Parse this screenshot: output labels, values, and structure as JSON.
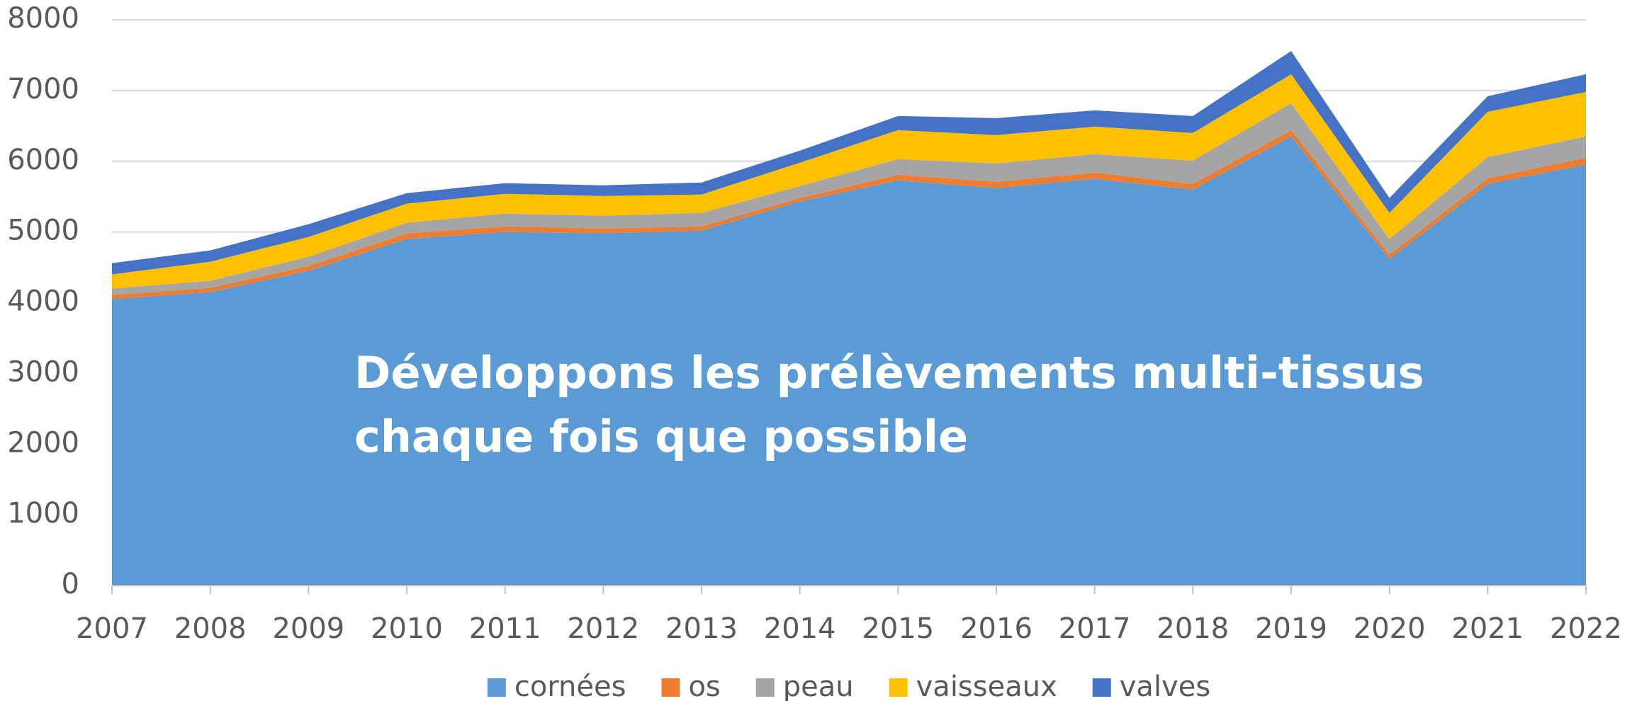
{
  "chart_data": {
    "type": "stacked-area",
    "annotation": [
      "Développons les prélèvements multi-tissus",
      "chaque fois que possible"
    ],
    "categories": [
      "2007",
      "2008",
      "2009",
      "2010",
      "2011",
      "2012",
      "2013",
      "2014",
      "2015",
      "2016",
      "2017",
      "2018",
      "2019",
      "2020",
      "2021",
      "2022"
    ],
    "series": [
      {
        "name": "cornées",
        "color": "#5b9bd5",
        "values": [
          4050,
          4150,
          4450,
          4900,
          5000,
          4980,
          5020,
          5430,
          5730,
          5620,
          5750,
          5600,
          6350,
          4620,
          5680,
          5950
        ]
      },
      {
        "name": "os",
        "color": "#ed7d31",
        "values": [
          60,
          60,
          70,
          80,
          80,
          70,
          60,
          50,
          80,
          90,
          90,
          80,
          90,
          60,
          80,
          100
        ]
      },
      {
        "name": "peau",
        "color": "#a5a5a5",
        "values": [
          90,
          100,
          130,
          150,
          180,
          180,
          190,
          170,
          220,
          260,
          260,
          330,
          380,
          220,
          300,
          300
        ]
      },
      {
        "name": "vaisseaux",
        "color": "#ffc000",
        "values": [
          200,
          270,
          280,
          270,
          280,
          280,
          260,
          330,
          410,
          400,
          390,
          390,
          410,
          370,
          640,
          630
        ]
      },
      {
        "name": "valves",
        "color": "#4472c4",
        "values": [
          160,
          160,
          180,
          150,
          150,
          150,
          170,
          170,
          200,
          240,
          230,
          240,
          330,
          210,
          220,
          250
        ]
      }
    ],
    "ylim": [
      0,
      8000
    ],
    "yticks": [
      0,
      1000,
      2000,
      3000,
      4000,
      5000,
      6000,
      7000,
      8000
    ],
    "grid": true,
    "legend": "bottom"
  }
}
